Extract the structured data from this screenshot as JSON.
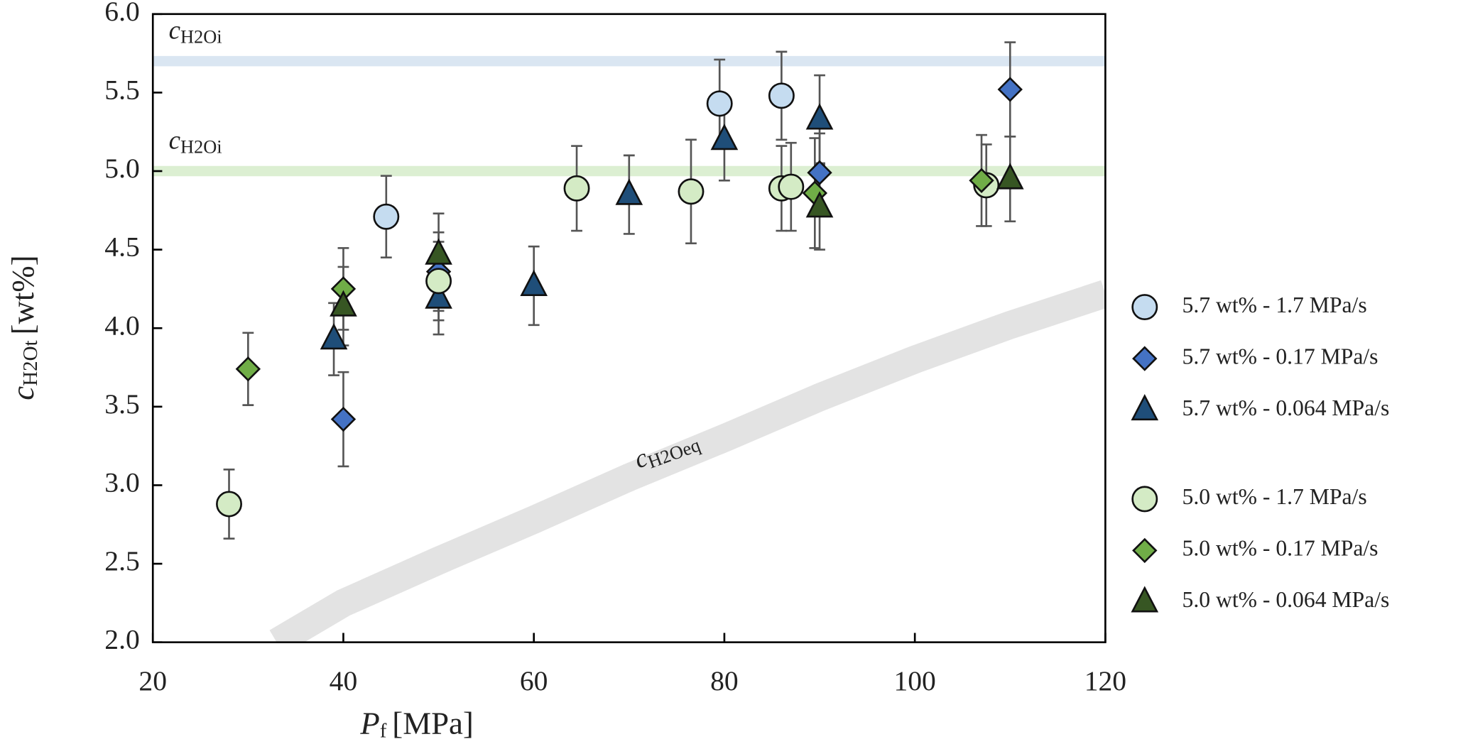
{
  "chart_data": {
    "type": "scatter",
    "x_label": {
      "symbol": "P",
      "subscript": "f",
      "unit": "[MPa]"
    },
    "y_label": {
      "symbol": "c",
      "subscript": "H2Ot",
      "unit": "[wt%]"
    },
    "xlim": [
      20,
      120
    ],
    "xticks": [
      20,
      40,
      60,
      80,
      100,
      120
    ],
    "ylim": [
      2,
      6
    ],
    "yticks": [
      {
        "value": 2,
        "label": "2.0"
      },
      2.5,
      {
        "value": 3,
        "label": "3.0"
      },
      3.5,
      {
        "value": 4,
        "label": "4.0"
      },
      4.5,
      {
        "value": 5,
        "label": "5.0"
      },
      5.5,
      {
        "value": 6,
        "label": "6.0"
      }
    ],
    "bands": [
      {
        "value": 5.7,
        "color": "#dae6f2",
        "symbol": "c",
        "subscript": "H2Oi"
      },
      {
        "value": 5.0,
        "color": "#dcefd2",
        "symbol": "c",
        "subscript": "H2Oi"
      }
    ],
    "equilibrium": {
      "symbol": "c",
      "subscript": "H2Oeq",
      "color": "#e3e3e3",
      "x": [
        33,
        40,
        50,
        60,
        70,
        80,
        90,
        100,
        110,
        120
      ],
      "values": [
        2.0,
        2.25,
        2.52,
        2.78,
        3.05,
        3.3,
        3.56,
        3.8,
        4.02,
        4.22
      ]
    },
    "series": [
      {
        "name": "5.7 wt% - 1.7 MPa/s",
        "color": "#c5dcf0",
        "marker": "circle",
        "x": [
          44.5,
          79.5,
          86
        ],
        "values": [
          4.71,
          5.43,
          5.48
        ],
        "errors": [
          0.26,
          0.28,
          0.28
        ]
      },
      {
        "name": "5.7 wt% - 0.17 MPa/s",
        "color": "#4472c4",
        "marker": "diamond",
        "x": [
          40,
          50,
          90,
          110
        ],
        "values": [
          3.42,
          4.36,
          4.99,
          5.52
        ],
        "errors": [
          0.3,
          0.25,
          0.25,
          0.3
        ]
      },
      {
        "name": "5.7 wt% - 0.064 MPa/s",
        "color": "#1f4e79",
        "marker": "triangle",
        "x": [
          39,
          50,
          60,
          70,
          80,
          90
        ],
        "values": [
          3.93,
          4.19,
          4.27,
          4.85,
          5.2,
          5.33
        ],
        "errors": [
          0.23,
          0.23,
          0.25,
          0.25,
          0.26,
          0.28
        ]
      },
      {
        "name": "5.0 wt% - 1.7 MPa/s",
        "color": "#d4ebc5",
        "marker": "circle",
        "x": [
          28,
          50,
          64.5,
          76.5,
          86,
          87,
          107.5
        ],
        "values": [
          2.88,
          4.3,
          4.89,
          4.87,
          4.89,
          4.9,
          4.91
        ],
        "errors": [
          0.22,
          0.25,
          0.27,
          0.33,
          0.27,
          0.28,
          0.26
        ]
      },
      {
        "name": "5.0 wt% - 0.17 MPa/s",
        "color": "#70ad47",
        "marker": "diamond",
        "x": [
          30,
          40,
          89.5,
          107
        ],
        "values": [
          3.74,
          4.25,
          4.86,
          4.94
        ],
        "errors": [
          0.23,
          0.26,
          0.35,
          0.29
        ]
      },
      {
        "name": "5.0 wt% - 0.064 MPa/s",
        "color": "#375623",
        "marker": "triangle",
        "x": [
          40,
          50,
          90,
          110
        ],
        "values": [
          4.14,
          4.47,
          4.77,
          4.95
        ],
        "errors": [
          0.25,
          0.26,
          0.27,
          0.27
        ]
      }
    ]
  }
}
